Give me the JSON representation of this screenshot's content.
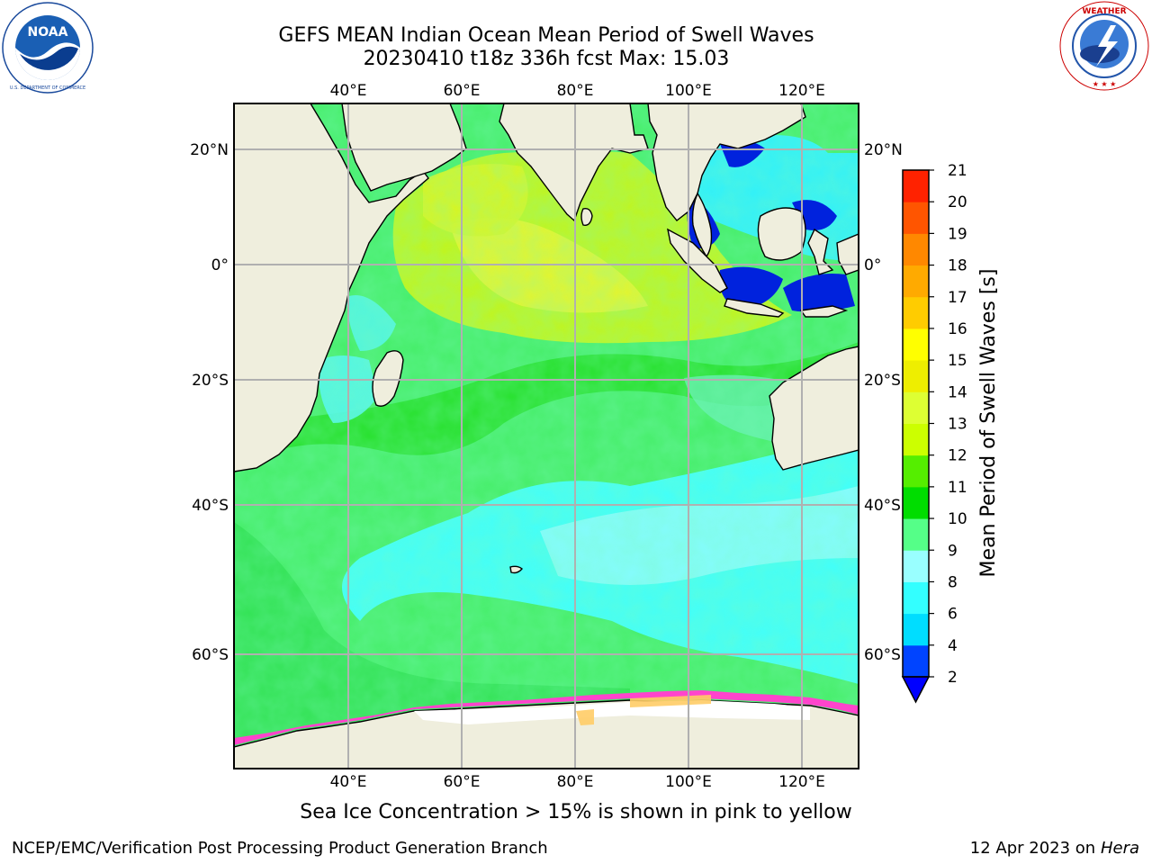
{
  "header": {
    "title_line1": "GEFS MEAN Indian Ocean Mean Period of Swell Waves",
    "title_line2": "20230410 t18z 336h fcst   Max: 15.03"
  },
  "logos": {
    "left": {
      "name": "noaa-logo",
      "text": "NOAA",
      "ring_text": "NATIONAL OCEANIC AND ATMOSPHERIC ADMINISTRATION · U.S. DEPARTMENT OF COMMERCE"
    },
    "right": {
      "name": "nws-logo",
      "ring_text": "NATIONAL WEATHER SERVICE"
    }
  },
  "map": {
    "lon_labels": [
      "40°E",
      "60°E",
      "80°E",
      "100°E",
      "120°E"
    ],
    "lat_labels": [
      "20°N",
      "0°",
      "20°S",
      "40°S",
      "60°S"
    ],
    "gridlines": true,
    "land_color": "#efeedd",
    "ocean_color": "#4ef06e",
    "sea_ice_color": "#ff44cc"
  },
  "colorbar": {
    "label": "Mean Period of Swell Waves [s]",
    "ticks": [
      "2",
      "4",
      "6",
      "8",
      "9",
      "10",
      "11",
      "12",
      "13",
      "14",
      "15",
      "16",
      "17",
      "18",
      "19",
      "20",
      "21"
    ],
    "colors": [
      "#0044ff",
      "#00ddff",
      "#33ffff",
      "#99ffff",
      "#55ff88",
      "#00dd00",
      "#55ee00",
      "#ccff00",
      "#ddff33",
      "#eeee00",
      "#ffff00",
      "#ffcc00",
      "#ffaa00",
      "#ff8800",
      "#ff5500",
      "#ff2200"
    ],
    "extend_color": "#0000ff",
    "extend": "min"
  },
  "subtitle": "Sea Ice Concentration > 15% is shown in pink to yellow",
  "footer": {
    "left": "NCEP/EMC/Verification Post Processing Product Generation Branch",
    "right_prefix": "12 Apr 2023 on ",
    "right_host": "Hera"
  }
}
